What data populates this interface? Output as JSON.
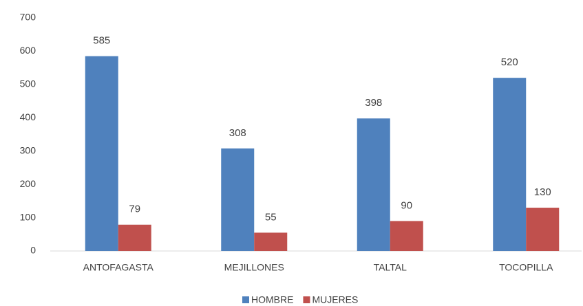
{
  "chart_data": {
    "type": "bar",
    "categories": [
      "ANTOFAGASTA",
      "MEJILLONES",
      "TALTAL",
      "TOCOPILLA"
    ],
    "series": [
      {
        "name": "HOMBRE",
        "color": "#4f81bd",
        "values": [
          585,
          308,
          398,
          520
        ]
      },
      {
        "name": "MUJERES",
        "color": "#c0504d",
        "values": [
          79,
          55,
          90,
          130
        ]
      }
    ],
    "ylim": [
      0,
      700
    ],
    "yticks": [
      0,
      100,
      200,
      300,
      400,
      500,
      600,
      700
    ],
    "grid": false,
    "legend": "bottom"
  }
}
